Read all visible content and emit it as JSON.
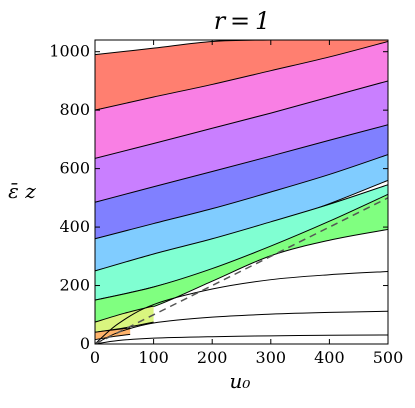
{
  "chart_data": {
    "type": "area",
    "title": "r = 1",
    "xlabel": "u₀",
    "ylabel": "ε̄ z",
    "xlim": [
      0,
      500
    ],
    "ylim": [
      0,
      1040
    ],
    "xticks": [
      0,
      100,
      200,
      300,
      400,
      500
    ],
    "yticks": [
      0,
      200,
      400,
      600,
      800,
      1000
    ],
    "grid": false,
    "legend": "none",
    "dashed_reference_line": {
      "style": "dashed",
      "color": "#555555",
      "points": [
        [
          0,
          0
        ],
        [
          500,
          500
        ]
      ]
    },
    "bands": [
      {
        "color": "#FF7F70",
        "lower": [
          [
            0,
            800
          ],
          [
            100,
            840
          ],
          [
            200,
            882
          ],
          [
            300,
            928
          ],
          [
            400,
            975
          ],
          [
            500,
            1022
          ]
        ],
        "upper": [
          [
            0,
            990
          ],
          [
            100,
            1012
          ],
          [
            200,
            1035
          ],
          [
            300,
            1040
          ],
          [
            400,
            1040
          ],
          [
            500,
            1040
          ]
        ]
      },
      {
        "color": "#F97FE4",
        "lower": [
          [
            0,
            633
          ],
          [
            100,
            680
          ],
          [
            200,
            730
          ],
          [
            300,
            780
          ],
          [
            400,
            832
          ],
          [
            500,
            880
          ]
        ],
        "upper": [
          [
            0,
            800
          ],
          [
            100,
            845
          ],
          [
            200,
            888
          ],
          [
            300,
            935
          ],
          [
            400,
            982
          ],
          [
            500,
            1035
          ]
        ]
      },
      {
        "color": "#C97FFF",
        "lower": [
          [
            0,
            485
          ],
          [
            100,
            532
          ],
          [
            200,
            581
          ],
          [
            300,
            634
          ],
          [
            400,
            690
          ],
          [
            500,
            742
          ]
        ],
        "upper": [
          [
            0,
            635
          ],
          [
            100,
            686
          ],
          [
            200,
            738
          ],
          [
            300,
            790
          ],
          [
            400,
            845
          ],
          [
            500,
            900
          ]
        ]
      },
      {
        "color": "#8080FF",
        "lower": [
          [
            0,
            360
          ],
          [
            100,
            406
          ],
          [
            200,
            455
          ],
          [
            300,
            510
          ],
          [
            400,
            573
          ],
          [
            500,
            640
          ]
        ],
        "upper": [
          [
            0,
            485
          ],
          [
            100,
            538
          ],
          [
            200,
            590
          ],
          [
            300,
            643
          ],
          [
            400,
            697
          ],
          [
            500,
            750
          ]
        ]
      },
      {
        "color": "#80CCFF",
        "lower": [
          [
            0,
            250
          ],
          [
            100,
            302
          ],
          [
            200,
            352
          ],
          [
            300,
            410
          ],
          [
            400,
            480
          ],
          [
            500,
            560
          ]
        ],
        "upper": [
          [
            0,
            360
          ],
          [
            100,
            412
          ],
          [
            200,
            463
          ],
          [
            300,
            520
          ],
          [
            400,
            580
          ],
          [
            500,
            648
          ]
        ]
      },
      {
        "color": "#80FFD2",
        "lower": [
          [
            0,
            150
          ],
          [
            100,
            195
          ],
          [
            200,
            255
          ],
          [
            300,
            330
          ],
          [
            400,
            418
          ],
          [
            500,
            505
          ]
        ],
        "upper": [
          [
            0,
            250
          ],
          [
            100,
            308
          ],
          [
            200,
            360
          ],
          [
            300,
            418
          ],
          [
            400,
            478
          ],
          [
            500,
            545
          ]
        ]
      },
      {
        "color": "#80FF80",
        "lower": [
          [
            0,
            70
          ],
          [
            100,
            128
          ],
          [
            200,
            215
          ],
          [
            300,
            302
          ],
          [
            400,
            355
          ],
          [
            500,
            392
          ]
        ],
        "upper": [
          [
            0,
            150
          ],
          [
            100,
            195
          ],
          [
            200,
            258
          ],
          [
            300,
            335
          ],
          [
            400,
            420
          ],
          [
            500,
            512
          ]
        ]
      },
      {
        "color": "#D9F57F",
        "lower": [
          [
            0,
            40
          ],
          [
            50,
            55
          ],
          [
            100,
            75
          ]
        ],
        "upper": [
          [
            0,
            75
          ],
          [
            50,
            105
          ],
          [
            100,
            130
          ]
        ]
      },
      {
        "color": "#FFB36B",
        "lower": [
          [
            0,
            15
          ],
          [
            30,
            25
          ],
          [
            60,
            33
          ]
        ],
        "upper": [
          [
            0,
            40
          ],
          [
            30,
            48
          ],
          [
            60,
            55
          ]
        ]
      }
    ],
    "extra_curves": [
      {
        "color": "#000000",
        "points": [
          [
            0,
            0
          ],
          [
            40,
            70
          ],
          [
            100,
            135
          ],
          [
            200,
            188
          ],
          [
            300,
            220
          ],
          [
            400,
            237
          ],
          [
            500,
            248
          ]
        ]
      },
      {
        "color": "#000000",
        "points": [
          [
            0,
            0
          ],
          [
            40,
            40
          ],
          [
            100,
            72
          ],
          [
            200,
            92
          ],
          [
            300,
            102
          ],
          [
            400,
            108
          ],
          [
            500,
            112
          ]
        ]
      },
      {
        "color": "#000000",
        "points": [
          [
            0,
            0
          ],
          [
            40,
            12
          ],
          [
            100,
            20
          ],
          [
            200,
            25
          ],
          [
            300,
            28
          ],
          [
            400,
            30
          ],
          [
            500,
            31
          ]
        ]
      }
    ]
  }
}
